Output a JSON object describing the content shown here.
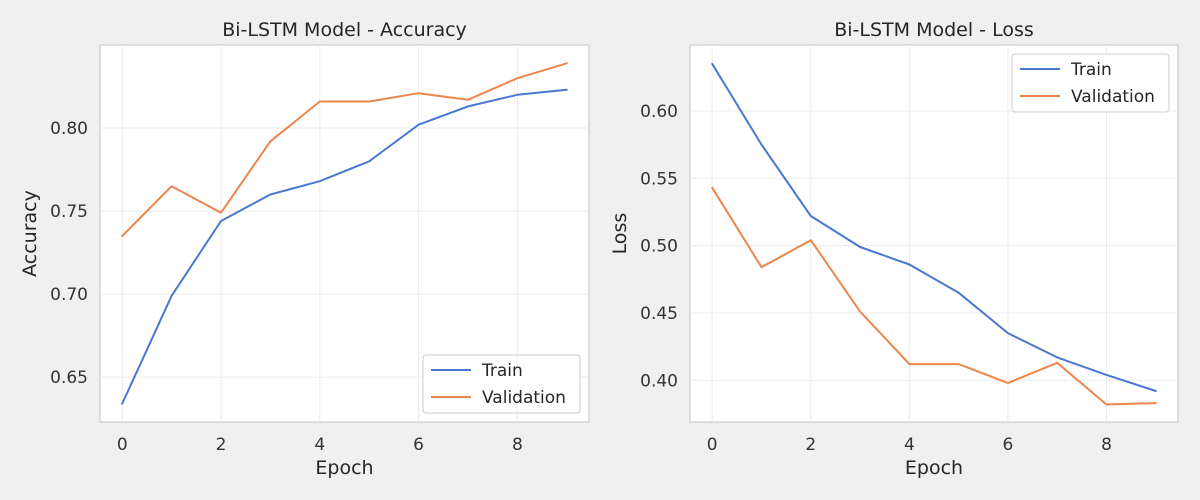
{
  "chart_data": [
    {
      "type": "line",
      "title": "Bi-LSTM Model - Accuracy",
      "xlabel": "Epoch",
      "ylabel": "Accuracy",
      "xlim": [
        -0.45,
        9.45
      ],
      "ylim": [
        0.623,
        0.85
      ],
      "xticks": [
        0,
        2,
        4,
        6,
        8
      ],
      "yticks": [
        0.65,
        0.7,
        0.75,
        0.8
      ],
      "ytick_decimals": 2,
      "grid": true,
      "legend_position": "lower-right",
      "x": [
        0,
        1,
        2,
        3,
        4,
        5,
        6,
        7,
        8,
        9
      ],
      "series": [
        {
          "name": "Train",
          "color": "#4878d0",
          "values": [
            0.634,
            0.699,
            0.744,
            0.76,
            0.768,
            0.78,
            0.802,
            0.813,
            0.82,
            0.823
          ]
        },
        {
          "name": "Validation",
          "color": "#ee854a",
          "values": [
            0.735,
            0.765,
            0.749,
            0.792,
            0.816,
            0.816,
            0.821,
            0.817,
            0.83,
            0.839
          ]
        }
      ]
    },
    {
      "type": "line",
      "title": "Bi-LSTM Model - Loss",
      "xlabel": "Epoch",
      "ylabel": "Loss",
      "xlim": [
        -0.45,
        9.45
      ],
      "ylim": [
        0.369,
        0.649
      ],
      "xticks": [
        0,
        2,
        4,
        6,
        8
      ],
      "yticks": [
        0.4,
        0.45,
        0.5,
        0.55,
        0.6
      ],
      "ytick_decimals": 2,
      "grid": true,
      "legend_position": "top-right",
      "x": [
        0,
        1,
        2,
        3,
        4,
        5,
        6,
        7,
        8,
        9
      ],
      "series": [
        {
          "name": "Train",
          "color": "#4878d0",
          "values": [
            0.635,
            0.575,
            0.522,
            0.499,
            0.486,
            0.465,
            0.435,
            0.417,
            0.404,
            0.392
          ]
        },
        {
          "name": "Validation",
          "color": "#ee854a",
          "values": [
            0.543,
            0.484,
            0.504,
            0.451,
            0.412,
            0.412,
            0.398,
            0.413,
            0.382,
            0.383
          ]
        }
      ]
    }
  ]
}
